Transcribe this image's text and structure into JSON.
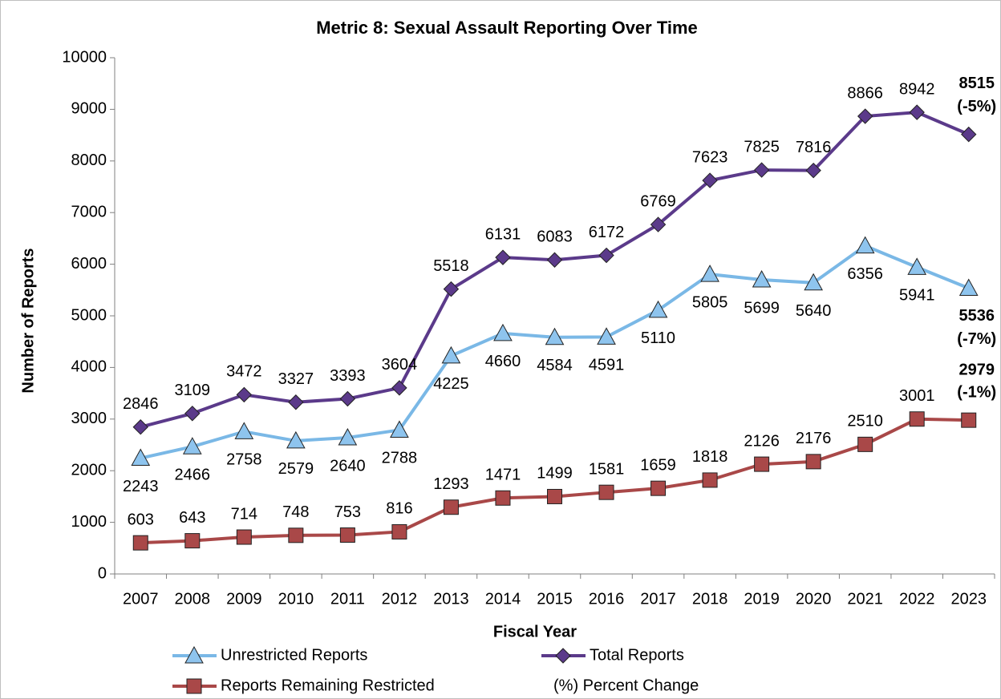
{
  "chart_data": {
    "type": "line",
    "title": "Metric 8: Sexual Assault Reporting Over Time",
    "x_label": "Fiscal Year",
    "y_label": "Number of Reports",
    "categories": [
      "2007",
      "2008",
      "2009",
      "2010",
      "2011",
      "2012",
      "2013",
      "2014",
      "2015",
      "2016",
      "2017",
      "2018",
      "2019",
      "2020",
      "2021",
      "2022",
      "2023"
    ],
    "ylim": [
      0,
      10000
    ],
    "yticks": [
      0,
      1000,
      2000,
      3000,
      4000,
      5000,
      6000,
      7000,
      8000,
      9000,
      10000
    ],
    "grid": false,
    "legend": "bottom",
    "legend_note": "(%) Percent Change",
    "series": [
      {
        "name": "Unrestricted Reports",
        "color": "#7ab8e6",
        "marker": "triangle",
        "values": [
          2243,
          2466,
          2758,
          2579,
          2640,
          2788,
          4225,
          4660,
          4584,
          4591,
          5110,
          5805,
          5699,
          5640,
          6356,
          5941,
          5536
        ],
        "percent_change": "(-7%)"
      },
      {
        "name": "Total Reports",
        "color": "#5b3a8a",
        "marker": "diamond",
        "values": [
          2846,
          3109,
          3472,
          3327,
          3393,
          3604,
          5518,
          6131,
          6083,
          6172,
          6769,
          7623,
          7825,
          7816,
          8866,
          8942,
          8515
        ],
        "percent_change": "(-5%)"
      },
      {
        "name": "Reports Remaining Restricted",
        "color": "#a94848",
        "marker": "square",
        "values": [
          603,
          643,
          714,
          748,
          753,
          816,
          1293,
          1471,
          1499,
          1581,
          1659,
          1818,
          2126,
          2176,
          2510,
          3001,
          2979
        ],
        "percent_change": "(-1%)"
      }
    ]
  }
}
